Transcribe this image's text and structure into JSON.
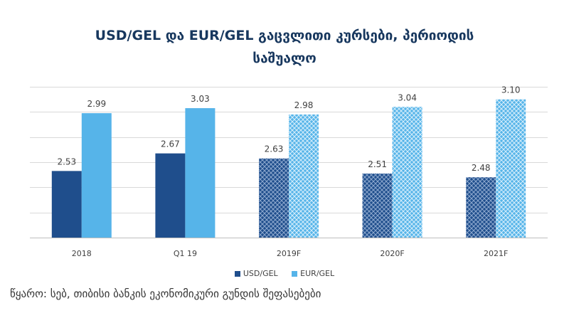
{
  "title_line1": "USD/GEL და EUR/GEL გაცვლითი კურსები, პერიოდის",
  "title_line2": "საშუალო",
  "source": "წყარო: სებ, თიბისი ბანკის ეკონომიკური გუნდის შეფასებები",
  "colors": {
    "usd": "#1f4e8c",
    "eur": "#56b4e9",
    "grid": "#d9d9d9",
    "title": "#17375e"
  },
  "chart_data": {
    "type": "bar",
    "title": "USD/GEL და EUR/GEL გაცვლითი კურსები, პერიოდის საშუალო",
    "categories": [
      "2018",
      "Q1 19",
      "2019F",
      "2020F",
      "2021F"
    ],
    "forecast": [
      false,
      false,
      true,
      true,
      true
    ],
    "series": [
      {
        "name": "USD/GEL",
        "values": [
          2.53,
          2.67,
          2.63,
          2.51,
          2.48
        ],
        "labels": [
          "2.53",
          "2.67",
          "2.63",
          "2.51",
          "2.48"
        ]
      },
      {
        "name": "EUR/GEL",
        "values": [
          2.99,
          3.03,
          2.98,
          3.04,
          3.1
        ],
        "labels": [
          "2.99",
          "3.03",
          "2.98",
          "3.04",
          "3.10"
        ]
      }
    ],
    "ylim": [
      2.0,
      3.2
    ],
    "grid": true,
    "legend": "bottom",
    "xlabel": "",
    "ylabel": ""
  }
}
